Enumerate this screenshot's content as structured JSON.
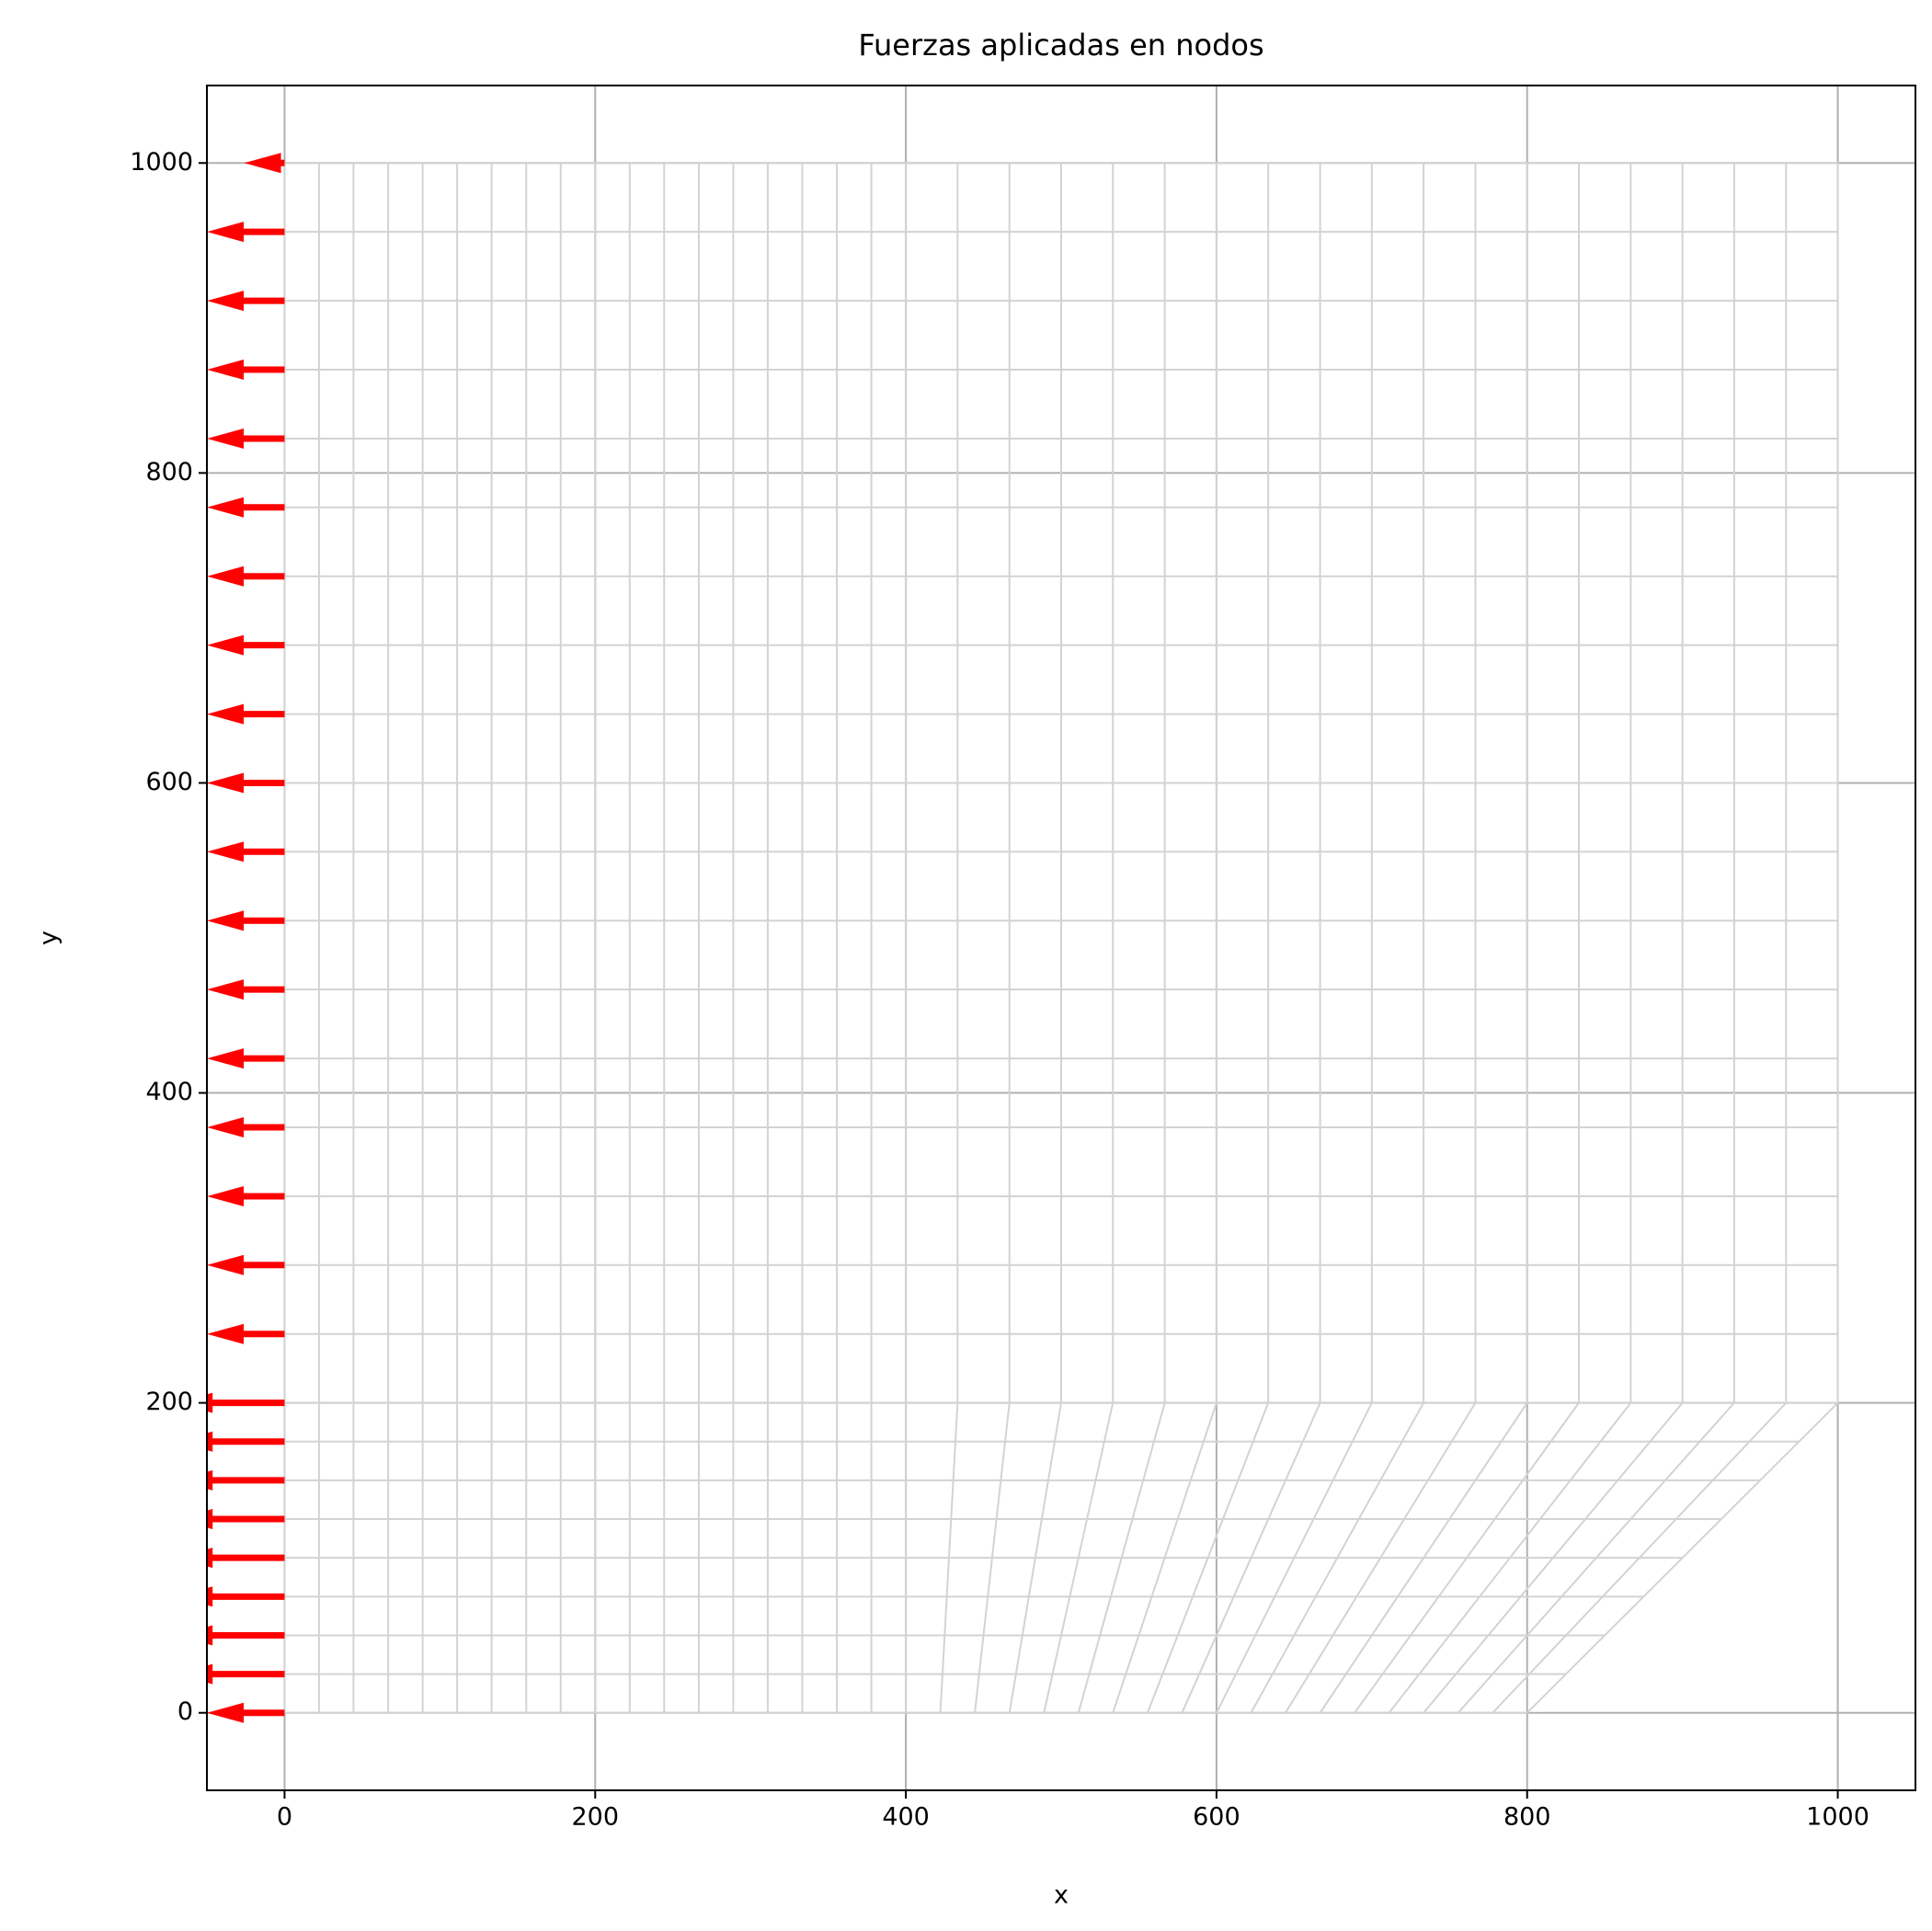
{
  "chart_data": {
    "type": "quiver",
    "title": "Fuerzas aplicadas en nodos",
    "x_label": "x",
    "y_label": "y",
    "xlim": [
      -50,
      1050
    ],
    "ylim": [
      -50,
      1050
    ],
    "xticks": [
      0,
      200,
      400,
      600,
      800,
      1000
    ],
    "yticks": [
      0,
      200,
      400,
      600,
      800,
      1000
    ],
    "grid": true,
    "mesh": {
      "color": "#d3d3d3",
      "x_top": [
        0,
        22.2,
        44.4,
        66.7,
        88.9,
        111.1,
        133.3,
        155.6,
        177.8,
        200,
        222.2,
        244.4,
        266.7,
        288.9,
        311.1,
        333.3,
        355.6,
        377.8,
        400,
        433.3,
        466.7,
        500,
        533.3,
        566.7,
        600,
        633.3,
        666.7,
        700,
        733.3,
        766.7,
        800,
        833.3,
        866.7,
        900,
        933.3,
        966.7,
        1000
      ],
      "x_bottom": [
        0,
        22.2,
        44.4,
        66.7,
        88.9,
        111.1,
        133.3,
        155.6,
        177.8,
        200,
        222.2,
        244.4,
        266.7,
        288.9,
        311.1,
        333.3,
        355.6,
        377.8,
        400,
        422.2,
        444.4,
        466.7,
        488.9,
        511.1,
        533.3,
        555.6,
        577.8,
        600,
        622.2,
        644.4,
        666.7,
        688.9,
        711.1,
        733.3,
        755.6,
        777.8,
        800
      ],
      "y": [
        0,
        25,
        50,
        75,
        100,
        125,
        150,
        175,
        200,
        244.4,
        288.9,
        333.3,
        377.8,
        422.2,
        466.7,
        511.1,
        555.6,
        600,
        644.4,
        688.9,
        733.3,
        777.8,
        822.2,
        866.7,
        911.1,
        955.6,
        1000
      ]
    },
    "series": [
      {
        "color": "#ff0000",
        "x": [
          0,
          0,
          0,
          0,
          0,
          0,
          0,
          0,
          0,
          0,
          0,
          0,
          0,
          0,
          0,
          0,
          0,
          0,
          0,
          0,
          0,
          0,
          0,
          0,
          0,
          0,
          0
        ],
        "y": [
          0,
          25,
          50,
          75,
          100,
          125,
          150,
          175,
          200,
          244.4,
          288.9,
          333.3,
          377.8,
          422.2,
          466.7,
          511.1,
          555.6,
          600,
          644.4,
          688.9,
          733.3,
          777.8,
          822.2,
          866.7,
          911.1,
          955.6,
          1000
        ],
        "u": [
          -50,
          -70,
          -70,
          -70,
          -70,
          -70,
          -70,
          -70,
          -70,
          -50,
          -50,
          -50,
          -50,
          -50,
          -50,
          -50,
          -50,
          -50,
          -50,
          -50,
          -50,
          -50,
          -50,
          -50,
          -50,
          -50,
          -26
        ]
      }
    ]
  }
}
